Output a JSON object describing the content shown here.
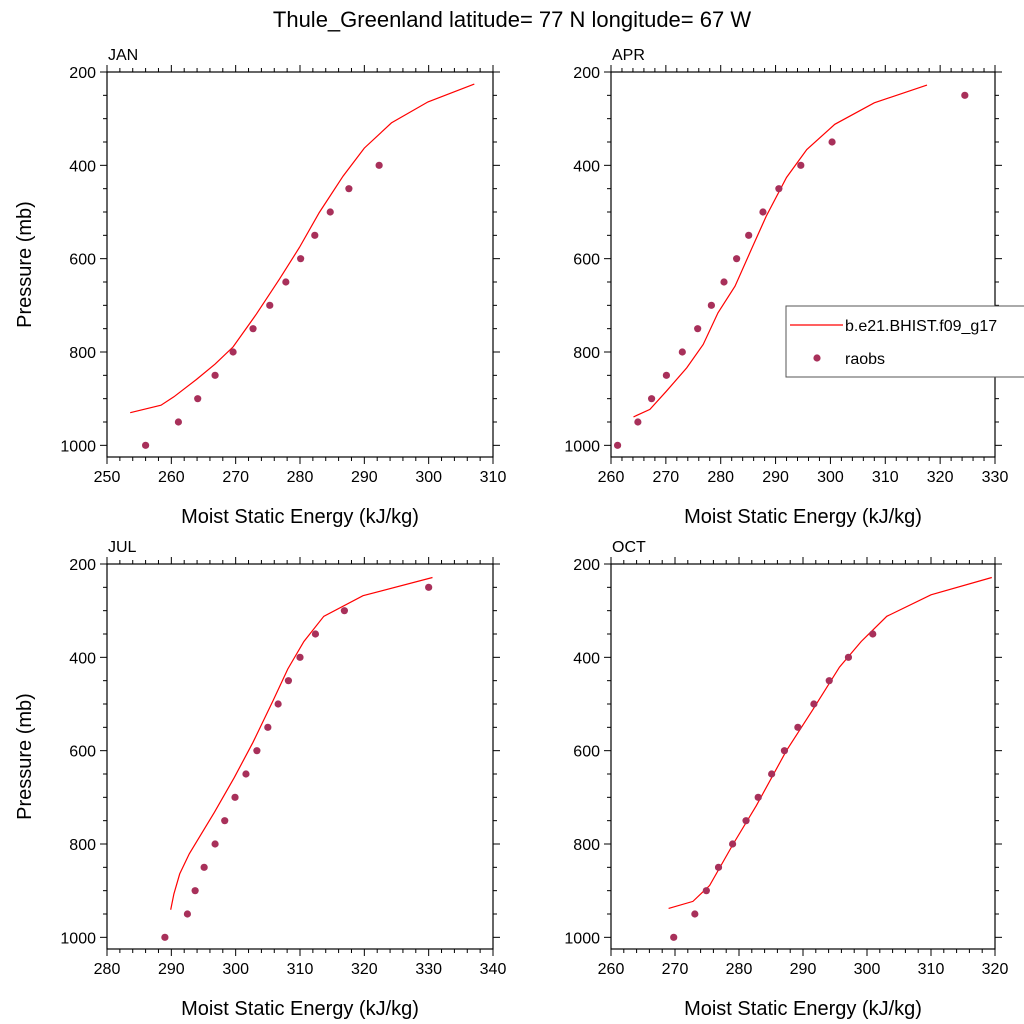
{
  "title": "Thule_Greenland  latitude= 77 N longitude= 67 W",
  "colors": {
    "model_line": "#ff0000",
    "raobs_marker": "#a8305a",
    "axes": "#000000"
  },
  "legend": {
    "placement": "right-middle of APR panel",
    "entries": [
      {
        "label": "b.e21.BHIST.f09_g17",
        "style": "line"
      },
      {
        "label": "raobs",
        "style": "marker"
      }
    ]
  },
  "chart_data": [
    {
      "type": "line+scatter",
      "panel_label": "JAN",
      "xlabel": "Moist Static Energy (kJ/kg)",
      "ylabel": "Pressure (mb)",
      "xlim": [
        250,
        310
      ],
      "xticks": [
        250,
        260,
        270,
        280,
        290,
        300,
        310
      ],
      "ylim": [
        1025,
        200
      ],
      "yticks": [
        200,
        400,
        600,
        800,
        1000
      ],
      "y_reversed": true,
      "model": {
        "x": [
          253.6,
          258.4,
          260.4,
          263.9,
          266.8,
          269.6,
          273.2,
          276.8,
          279.9,
          283.0,
          286.7,
          290.0,
          294.2,
          299.9,
          307.1
        ],
        "p": [
          930,
          914,
          896,
          859,
          826,
          789,
          719,
          644,
          576,
          501,
          423,
          363,
          309,
          264,
          226
        ]
      },
      "raobs": {
        "x": [
          256.0,
          261.1,
          264.1,
          266.8,
          269.6,
          272.7,
          275.3,
          277.8,
          280.1,
          282.3,
          284.7,
          287.6,
          292.3
        ],
        "p": [
          1000,
          950,
          900,
          850,
          800,
          750,
          700,
          650,
          600,
          550,
          500,
          450,
          400
        ]
      }
    },
    {
      "type": "line+scatter",
      "panel_label": "APR",
      "xlabel": "Moist Static Energy (kJ/kg)",
      "ylabel": "",
      "xlim": [
        260,
        330
      ],
      "xticks": [
        260,
        270,
        280,
        290,
        300,
        310,
        320,
        330
      ],
      "ylim": [
        1025,
        200
      ],
      "yticks": [
        200,
        400,
        600,
        800,
        1000
      ],
      "y_reversed": true,
      "model": {
        "x": [
          264.1,
          267.1,
          270.1,
          273.8,
          276.8,
          279.5,
          282.6,
          285.6,
          288.3,
          292.0,
          295.7,
          300.8,
          308.0,
          317.6
        ],
        "p": [
          939,
          923,
          884,
          834,
          784,
          716,
          659,
          580,
          509,
          426,
          366,
          312,
          266,
          228
        ]
      },
      "raobs": {
        "x": [
          261.2,
          264.9,
          267.4,
          270.1,
          273.0,
          275.8,
          278.3,
          280.6,
          282.9,
          285.1,
          287.7,
          290.6,
          294.6,
          300.3,
          324.5
        ],
        "p": [
          1000,
          950,
          900,
          850,
          800,
          750,
          700,
          650,
          600,
          550,
          500,
          450,
          400,
          350,
          250
        ]
      }
    },
    {
      "type": "line+scatter",
      "panel_label": "JUL",
      "xlabel": "Moist Static Energy (kJ/kg)",
      "ylabel": "Pressure (mb)",
      "xlim": [
        280,
        340
      ],
      "xticks": [
        280,
        290,
        300,
        310,
        320,
        330,
        340
      ],
      "ylim": [
        1025,
        200
      ],
      "yticks": [
        200,
        400,
        600,
        800,
        1000
      ],
      "y_reversed": true,
      "model": {
        "x": [
          289.9,
          290.4,
          291.3,
          292.8,
          296.7,
          299.8,
          302.7,
          305.8,
          308.1,
          310.6,
          313.7,
          319.8,
          330.6
        ],
        "p": [
          941,
          907,
          864,
          821,
          732,
          657,
          582,
          493,
          425,
          366,
          312,
          268,
          229
        ]
      },
      "raobs": {
        "x": [
          289.0,
          292.5,
          293.7,
          295.1,
          296.8,
          298.3,
          299.9,
          301.6,
          303.3,
          305.0,
          306.6,
          308.2,
          310.0,
          312.4,
          316.9,
          330.0
        ],
        "p": [
          1000,
          950,
          900,
          850,
          800,
          750,
          700,
          650,
          600,
          550,
          500,
          450,
          400,
          350,
          300,
          250
        ]
      }
    },
    {
      "type": "line+scatter",
      "panel_label": "OCT",
      "xlabel": "Moist Static Energy (kJ/kg)",
      "ylabel": "",
      "xlim": [
        260,
        320
      ],
      "xticks": [
        260,
        270,
        280,
        290,
        300,
        310,
        320
      ],
      "ylim": [
        1025,
        200
      ],
      "yticks": [
        200,
        400,
        600,
        800,
        1000
      ],
      "y_reversed": true,
      "model": {
        "x": [
          269.0,
          272.8,
          275.4,
          279.1,
          282.7,
          287.4,
          291.6,
          295.7,
          299.1,
          303.1,
          310.0,
          319.5
        ],
        "p": [
          938,
          923,
          889,
          800,
          718,
          600,
          511,
          421,
          366,
          312,
          266,
          229
        ]
      },
      "raobs": {
        "x": [
          269.8,
          273.1,
          274.9,
          276.8,
          279.0,
          281.1,
          283.0,
          285.1,
          287.1,
          289.2,
          291.7,
          294.1,
          297.1,
          300.9
        ],
        "p": [
          1000,
          950,
          900,
          850,
          800,
          750,
          700,
          650,
          600,
          550,
          500,
          450,
          400,
          350
        ]
      }
    }
  ]
}
